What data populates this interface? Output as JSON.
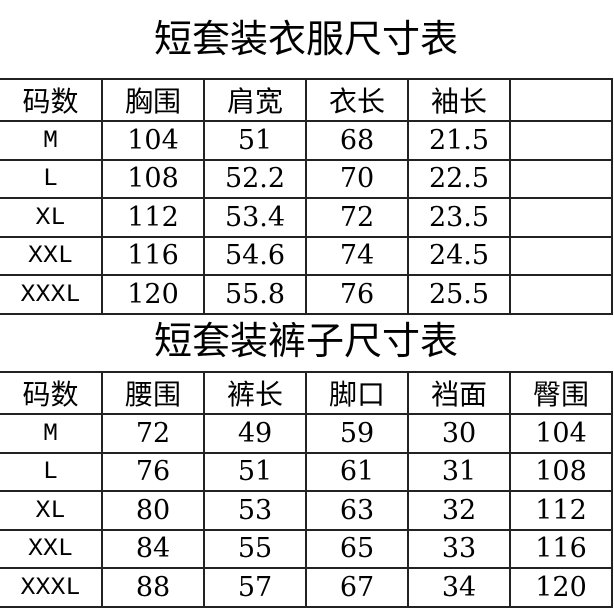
{
  "tops": {
    "title": "短套装衣服尺寸表",
    "headers": [
      "码数",
      "胸围",
      "肩宽",
      "衣长",
      "袖长",
      ""
    ],
    "rows": [
      [
        "M",
        "104",
        "51",
        "68",
        "21.5",
        ""
      ],
      [
        "L",
        "108",
        "52.2",
        "70",
        "22.5",
        ""
      ],
      [
        "XL",
        "112",
        "53.4",
        "72",
        "23.5",
        ""
      ],
      [
        "XXL",
        "116",
        "54.6",
        "74",
        "24.5",
        ""
      ],
      [
        "XXXL",
        "120",
        "55.8",
        "76",
        "25.5",
        ""
      ]
    ]
  },
  "pants": {
    "title": "短套装裤子尺寸表",
    "headers": [
      "码数",
      "腰围",
      "裤长",
      "脚口",
      "裆面",
      "臀围"
    ],
    "rows": [
      [
        "M",
        "72",
        "49",
        "59",
        "30",
        "104"
      ],
      [
        "L",
        "76",
        "51",
        "61",
        "31",
        "108"
      ],
      [
        "XL",
        "80",
        "53",
        "63",
        "32",
        "112"
      ],
      [
        "XXL",
        "84",
        "55",
        "65",
        "33",
        "116"
      ],
      [
        "XXXL",
        "88",
        "57",
        "67",
        "34",
        "120"
      ]
    ]
  }
}
